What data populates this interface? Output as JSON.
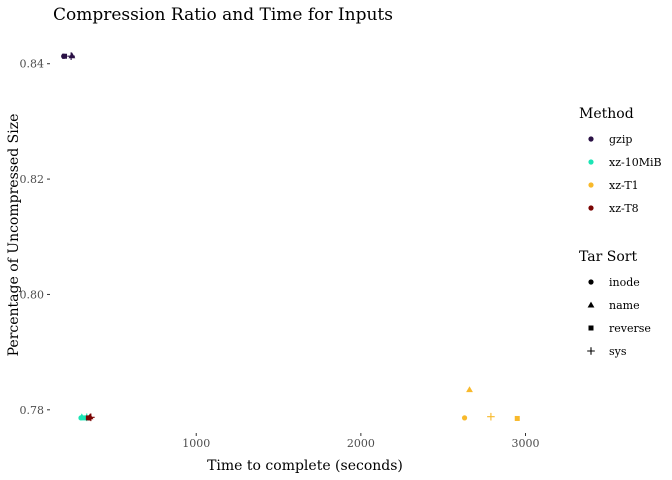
{
  "chart_data": {
    "type": "scatter",
    "title": "Compression Ratio and Time for Inputs",
    "xlabel": "Time to complete (seconds)",
    "ylabel": "Percentage of Uncompressed Size",
    "xlim": [
      130,
      3240
    ],
    "ylim": [
      0.7765,
      0.8455
    ],
    "xticks": [
      1000,
      2000,
      3000
    ],
    "xtick_labels": [
      "1000",
      "2000",
      "3000"
    ],
    "yticks": [
      0.78,
      0.8,
      0.82,
      0.84
    ],
    "ytick_labels": [
      "0.78",
      "0.80",
      "0.82",
      "0.84"
    ],
    "grid": false,
    "legend_placement": "right",
    "legends": [
      {
        "title": "Method",
        "kind": "color",
        "entries": [
          {
            "label": "gzip",
            "color": "#2a1145"
          },
          {
            "label": "xz-10MiB",
            "color": "#1be5b5"
          },
          {
            "label": "xz-T1",
            "color": "#f8b92b"
          },
          {
            "label": "xz-T8",
            "color": "#7a0403"
          }
        ]
      },
      {
        "title": "Tar Sort",
        "kind": "shape",
        "entries": [
          {
            "label": "inode",
            "shape": "circle"
          },
          {
            "label": "name",
            "shape": "triangle"
          },
          {
            "label": "reverse",
            "shape": "square"
          },
          {
            "label": "sys",
            "shape": "plus"
          }
        ]
      }
    ],
    "series": [
      {
        "method": "gzip",
        "sort": "inode",
        "x": 195,
        "y": 0.8413
      },
      {
        "method": "gzip",
        "sort": "name",
        "x": 245,
        "y": 0.8414
      },
      {
        "method": "gzip",
        "sort": "reverse",
        "x": 200,
        "y": 0.8413
      },
      {
        "method": "gzip",
        "sort": "sys",
        "x": 240,
        "y": 0.8413
      },
      {
        "method": "xz-10MiB",
        "sort": "inode",
        "x": 300,
        "y": 0.7786
      },
      {
        "method": "xz-10MiB",
        "sort": "name",
        "x": 305,
        "y": 0.7788
      },
      {
        "method": "xz-10MiB",
        "sort": "reverse",
        "x": 320,
        "y": 0.7786
      },
      {
        "method": "xz-10MiB",
        "sort": "sys",
        "x": 335,
        "y": 0.7787
      },
      {
        "method": "xz-T1",
        "sort": "inode",
        "x": 2630,
        "y": 0.7786
      },
      {
        "method": "xz-T1",
        "sort": "name",
        "x": 2660,
        "y": 0.7835
      },
      {
        "method": "xz-T1",
        "sort": "reverse",
        "x": 2950,
        "y": 0.7785
      },
      {
        "method": "xz-T1",
        "sort": "sys",
        "x": 2790,
        "y": 0.7788
      },
      {
        "method": "xz-T8",
        "sort": "inode",
        "x": 350,
        "y": 0.7786
      },
      {
        "method": "xz-T8",
        "sort": "name",
        "x": 355,
        "y": 0.7788
      },
      {
        "method": "xz-T8",
        "sort": "reverse",
        "x": 345,
        "y": 0.7786
      },
      {
        "method": "xz-T8",
        "sort": "sys",
        "x": 360,
        "y": 0.7787
      }
    ]
  }
}
